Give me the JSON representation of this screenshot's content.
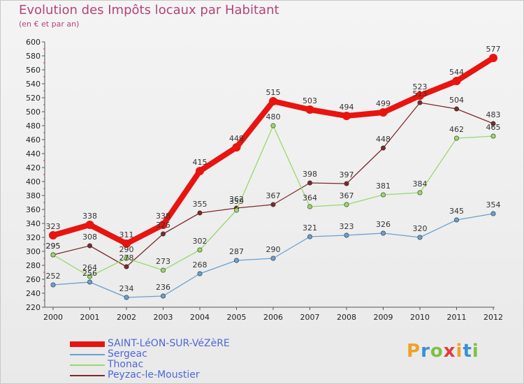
{
  "header": {
    "title": "Evolution des Impôts locaux par Habitant",
    "subtitle": "(en € et par an)"
  },
  "logo": {
    "letters": [
      "P",
      "r",
      "o",
      "x",
      "i",
      "t",
      "i"
    ],
    "colors": [
      "#f0a12a",
      "#3a8fd8",
      "#7cc242",
      "#e23d3d",
      "#f0a12a",
      "#3a8fd8",
      "#7cc242"
    ]
  },
  "chart_data": {
    "type": "line",
    "x": [
      "2000",
      "2001",
      "2002",
      "2003",
      "2004",
      "2005",
      "2006",
      "2007",
      "2008",
      "2009",
      "2010",
      "2011",
      "2012"
    ],
    "ylim": [
      220,
      600
    ],
    "yticks": [
      220,
      240,
      260,
      280,
      300,
      320,
      340,
      360,
      380,
      400,
      420,
      440,
      460,
      480,
      500,
      520,
      540,
      560,
      580,
      600
    ],
    "grid": false,
    "legend_position": "bottom-left",
    "series": [
      {
        "name": "SAINT-LéON-SUR-VéZèRE",
        "color": "#e8140f",
        "values": [
          323,
          338,
          311,
          338,
          415,
          449,
          515,
          503,
          494,
          499,
          523,
          544,
          577
        ]
      },
      {
        "name": "Sergeac",
        "color": "#6b9fd0",
        "values": [
          252,
          256,
          234,
          236,
          268,
          287,
          290,
          321,
          323,
          326,
          320,
          345,
          354
        ]
      },
      {
        "name": "Thonac",
        "color": "#9ad86a",
        "values": [
          295,
          264,
          290,
          273,
          302,
          359,
          480,
          364,
          367,
          381,
          384,
          462,
          465
        ]
      },
      {
        "name": "Peyzac-le-Moustier",
        "color": "#7b2a2a",
        "values": [
          295,
          308,
          278,
          325,
          355,
          362,
          367,
          398,
          397,
          448,
          513,
          504,
          483
        ]
      }
    ]
  }
}
